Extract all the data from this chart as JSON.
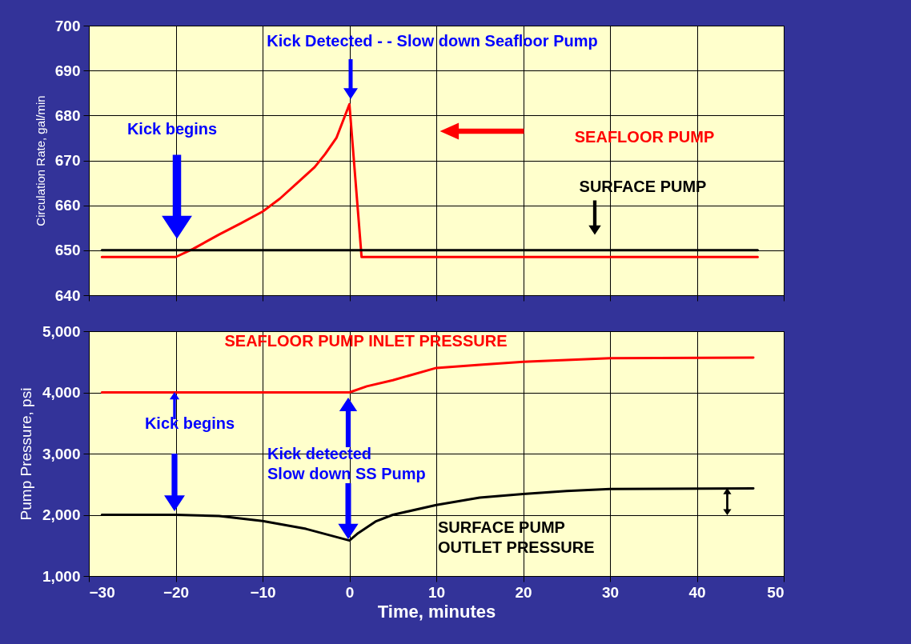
{
  "chart_data": [
    {
      "type": "line",
      "ylabel": "Circulation Rate, gal/min",
      "xlim": [
        -30,
        50
      ],
      "xticks": [
        -30,
        -20,
        -10,
        0,
        10,
        20,
        30,
        40,
        50
      ],
      "ylim": [
        640,
        700
      ],
      "yticks": [
        640,
        650,
        660,
        670,
        680,
        690,
        700
      ],
      "grid": true,
      "tick_labels": "y",
      "series": [
        {
          "name": "SEAFLOOR PUMP",
          "color": "#ff0000",
          "x": [
            -28.5,
            -20,
            -18,
            -15,
            -12.5,
            -10,
            -8,
            -6,
            -4,
            -2.8,
            -1.5,
            0,
            1.4,
            47
          ],
          "values": [
            648.5,
            648.5,
            650.3,
            653.5,
            656,
            658.6,
            661.5,
            665,
            668.5,
            671.4,
            675,
            682.5,
            648.5,
            648.5
          ]
        },
        {
          "name": "SURFACE PUMP",
          "color": "#000000",
          "x": [
            -28.5,
            47
          ],
          "values": [
            650,
            650
          ]
        }
      ],
      "annotations": [
        "Kick begins",
        "Kick Detected  - - Slow down Seafloor Pump"
      ]
    },
    {
      "type": "line",
      "xlabel": "Time,  minutes",
      "ylabel": "Pump Pressure, psi",
      "xlim": [
        -30,
        50
      ],
      "xticks": [
        -30,
        -20,
        -10,
        0,
        10,
        20,
        30,
        40,
        50
      ],
      "ylim": [
        1000,
        5000
      ],
      "yticks": [
        {
          "value": 1000,
          "label": "1,000"
        },
        {
          "value": 2000,
          "label": "2,000"
        },
        {
          "value": 3000,
          "label": "3,000"
        },
        {
          "value": 4000,
          "label": "4,000"
        },
        {
          "value": 5000,
          "label": "5,000"
        }
      ],
      "grid": true,
      "series": [
        {
          "name": "SEAFLOOR PUMP INLET PRESSURE",
          "color": "#ff0000",
          "x": [
            -28.5,
            0,
            2,
            5,
            10,
            15,
            20,
            25,
            30,
            46.5
          ],
          "values": [
            4000,
            4000,
            4100,
            4200,
            4400,
            4450,
            4500,
            4530,
            4560,
            4570
          ]
        },
        {
          "name": "SURFACE PUMP\nOUTLET PRESSURE",
          "color": "#000000",
          "x": [
            -28.5,
            -20,
            -15,
            -10,
            -5,
            0,
            1,
            3,
            5,
            10,
            15,
            20,
            25,
            30,
            46.5
          ],
          "values": [
            2000,
            2000,
            1980,
            1900,
            1770,
            1580,
            1700,
            1890,
            2000,
            2160,
            2280,
            2340,
            2390,
            2420,
            2430
          ]
        }
      ],
      "annotations": [
        "Kick begins",
        "Kick detected\nSlow down SS Pump"
      ]
    }
  ]
}
